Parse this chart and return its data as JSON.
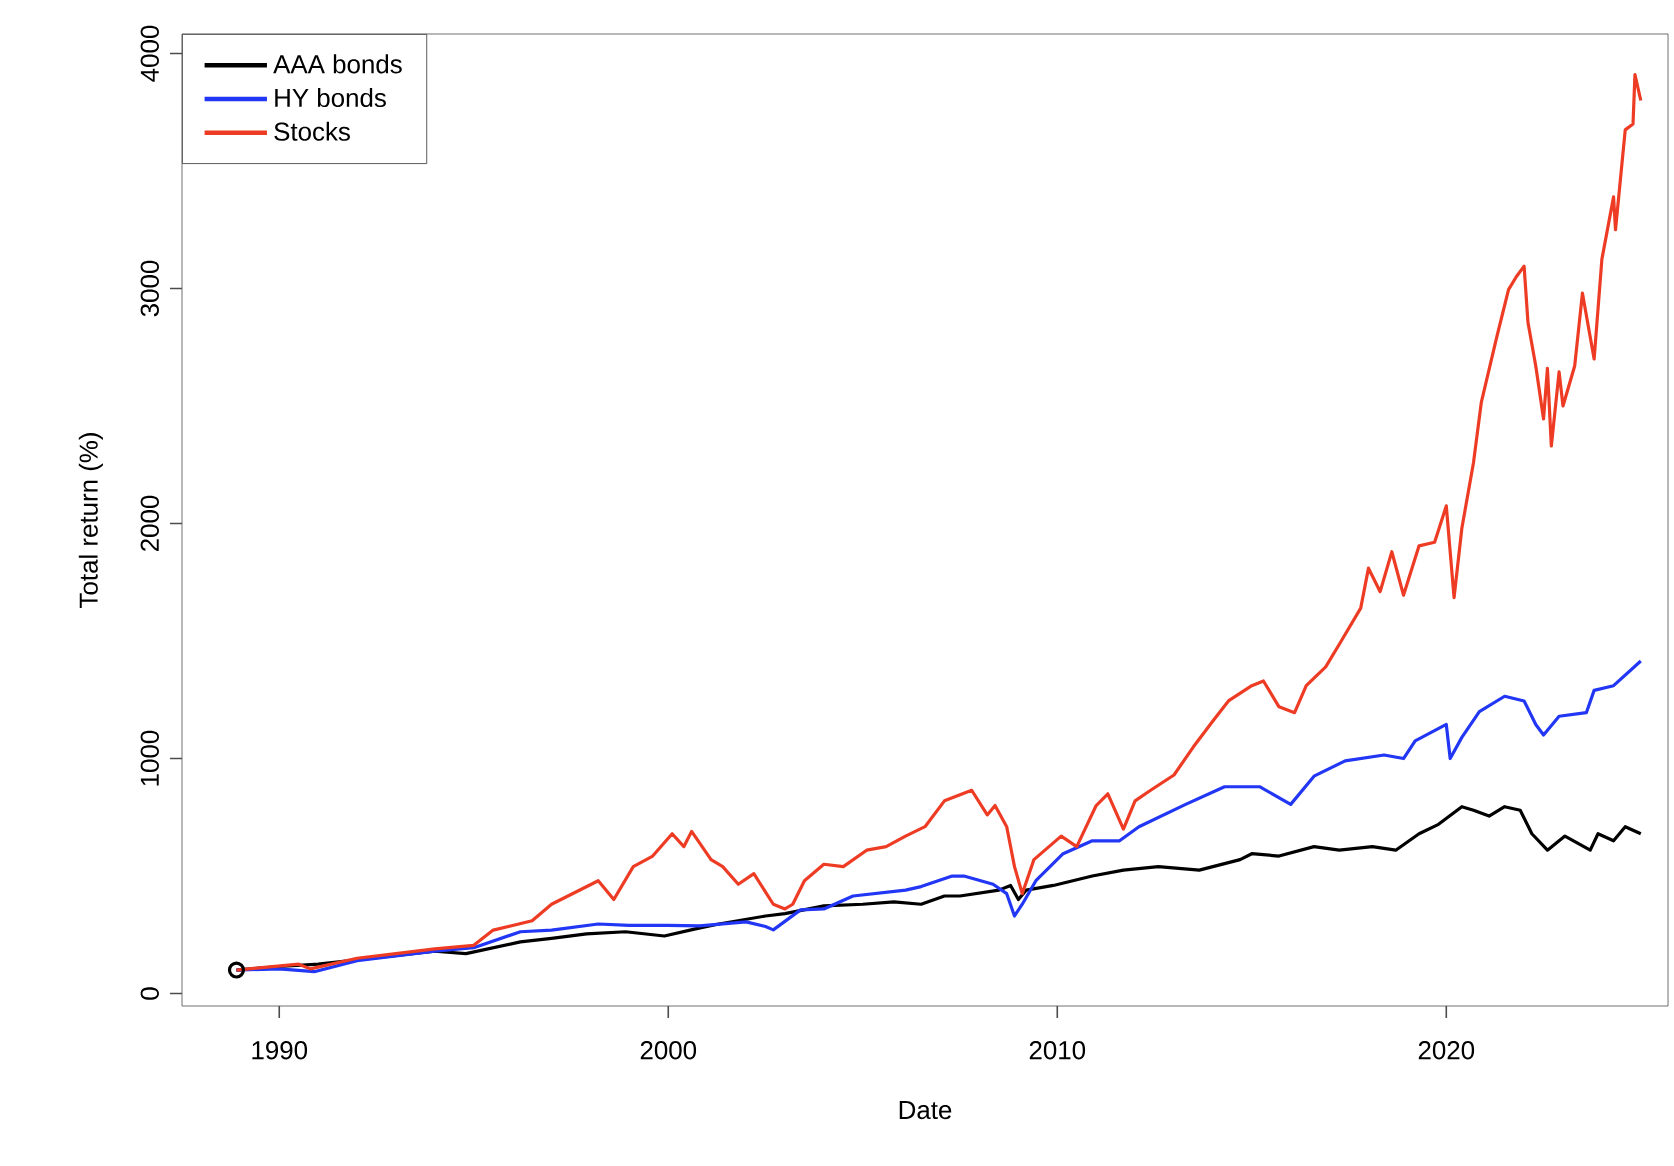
{
  "chart_data": {
    "type": "line",
    "xlabel": "Date",
    "ylabel": "Total return (%)",
    "xlim": [
      1987.5,
      2025.7
    ],
    "ylim": [
      -53,
      4083
    ],
    "xticks": [
      1990,
      2000,
      2010,
      2020
    ],
    "yticks": [
      0,
      1000,
      2000,
      3000,
      4000
    ],
    "grid": false,
    "legend": "top left",
    "line_style": "solid",
    "series": [
      {
        "name": "AAA bonds",
        "color": "#000000",
        "x": [
          1988.9,
          1990,
          1991,
          1992,
          1993,
          1994,
          1994.8,
          1996.2,
          1997,
          1997.9,
          1998.9,
          1999.9,
          2000.7,
          2001.3,
          2002.5,
          2003.0,
          2004.0,
          2005,
          2005.8,
          2006.5,
          2007.1,
          2007.5,
          2008.5,
          2008.8,
          2009.0,
          2009.2,
          2009.9,
          2010.9,
          2011.7,
          2012.6,
          2013.65,
          2014.7,
          2015.0,
          2015.7,
          2016.6,
          2017.25,
          2018.1,
          2018.7,
          2019.3,
          2019.8,
          2020.4,
          2020.7,
          2021.1,
          2021.5,
          2021.9,
          2022.2,
          2022.6,
          2023.05,
          2023.7,
          2023.9,
          2024.3,
          2024.6,
          2025.0
        ],
        "values": [
          100,
          115,
          125,
          null,
          null,
          180,
          170,
          220,
          235,
          254,
          263,
          245,
          275,
          296,
          330,
          340,
          373,
          380,
          390,
          380,
          415,
          415,
          440,
          460,
          400,
          440,
          460,
          500,
          525,
          540,
          525,
          570,
          595,
          585,
          625,
          610,
          625,
          610,
          680,
          720,
          795,
          780,
          755,
          795,
          780,
          680,
          610,
          670,
          610,
          680,
          650,
          710,
          680
        ]
      },
      {
        "name": "HY bonds",
        "color": "#2236f5",
        "x": [
          1988.9,
          1990,
          1990.9,
          1992,
          1993,
          1994,
          1995,
          1996.2,
          1997,
          1998.2,
          1999,
          2000,
          2000.8,
          2002.0,
          2002.5,
          2002.7,
          2003.4,
          2004,
          2004.75,
          2006.1,
          2006.5,
          2007.3,
          2007.6,
          2008.35,
          2008.7,
          2008.9,
          2009.1,
          2009.45,
          2010.15,
          2010.9,
          2011.6,
          2012.1,
          2013.3,
          2014.3,
          2015.2,
          2016.0,
          2016.6,
          2017.4,
          2018.4,
          2018.9,
          2019.2,
          2020.0,
          2020.1,
          2020.4,
          2020.85,
          2021.5,
          2022.0,
          2022.3,
          2022.5,
          2022.9,
          2023.6,
          2023.8,
          2024.3,
          2025.0
        ],
        "values": [
          100,
          105,
          93,
          140,
          160,
          180,
          195,
          263,
          270,
          296,
          290,
          290,
          288,
          305,
          285,
          271,
          356,
          360,
          415,
          440,
          455,
          500,
          500,
          465,
          425,
          330,
          380,
          480,
          595,
          650,
          650,
          710,
          805,
          880,
          880,
          805,
          925,
          990,
          1015,
          1000,
          1075,
          1145,
          1000,
          1090,
          1200,
          1265,
          1245,
          1145,
          1100,
          1180,
          1195,
          1290,
          1310,
          1415
        ]
      },
      {
        "name": "Stocks",
        "color": "#ee3b24",
        "x": [
          1988.9,
          1990.5,
          1990.8,
          1992,
          1993,
          1994,
          1995,
          1995.5,
          1996.5,
          1997.0,
          1998.2,
          1998.6,
          1999.1,
          1999.6,
          2000.1,
          2000.4,
          2000.6,
          2001.1,
          2001.4,
          2001.8,
          2002.2,
          2002.7,
          2003.0,
          2003.2,
          2003.5,
          2004.0,
          2004.5,
          2005.1,
          2005.6,
          2006.1,
          2006.6,
          2007.1,
          2007.8,
          2008.2,
          2008.4,
          2008.7,
          2008.9,
          2009.1,
          2009.4,
          2010.1,
          2010.5,
          2011.0,
          2011.3,
          2011.7,
          2012.0,
          2012.4,
          2013.0,
          2013.5,
          2014.0,
          2014.4,
          2015.0,
          2015.3,
          2015.7,
          2016.1,
          2016.4,
          2016.9,
          2017.3,
          2017.8,
          2018.0,
          2018.3,
          2018.6,
          2018.9,
          2019.3,
          2019.7,
          2020.0,
          2020.2,
          2020.4,
          2020.7,
          2020.9,
          2021.3,
          2021.6,
          2021.8,
          2022.0,
          2022.1,
          2022.3,
          2022.5,
          2022.6,
          2022.7,
          2022.9,
          2023.0,
          2023.3,
          2023.5,
          2023.8,
          2024.0,
          2024.3,
          2024.35,
          2024.6,
          2024.8,
          2024.85,
          2025.0
        ],
        "values": [
          100,
          125,
          105,
          150,
          170,
          190,
          205,
          270,
          310,
          380,
          480,
          400,
          540,
          585,
          680,
          625,
          690,
          570,
          540,
          465,
          510,
          380,
          360,
          380,
          480,
          550,
          540,
          610,
          625,
          670,
          710,
          820,
          865,
          760,
          800,
          710,
          540,
          425,
          570,
          670,
          625,
          800,
          850,
          700,
          820,
          865,
          930,
          1050,
          1160,
          1245,
          1310,
          1330,
          1220,
          1195,
          1310,
          1390,
          1500,
          1640,
          1810,
          1710,
          1880,
          1695,
          1905,
          1920,
          2075,
          1685,
          1980,
          2260,
          2515,
          2795,
          2995,
          3050,
          3095,
          2855,
          2670,
          2445,
          2660,
          2330,
          2645,
          2500,
          2670,
          2980,
          2700,
          3125,
          3390,
          3250,
          3675,
          3700,
          3910,
          3800
        ]
      },
      {
        "type": "scatter",
        "color": "#000000",
        "marker": "circle",
        "x": [
          1988.9
        ],
        "values": [
          100
        ]
      }
    ]
  }
}
